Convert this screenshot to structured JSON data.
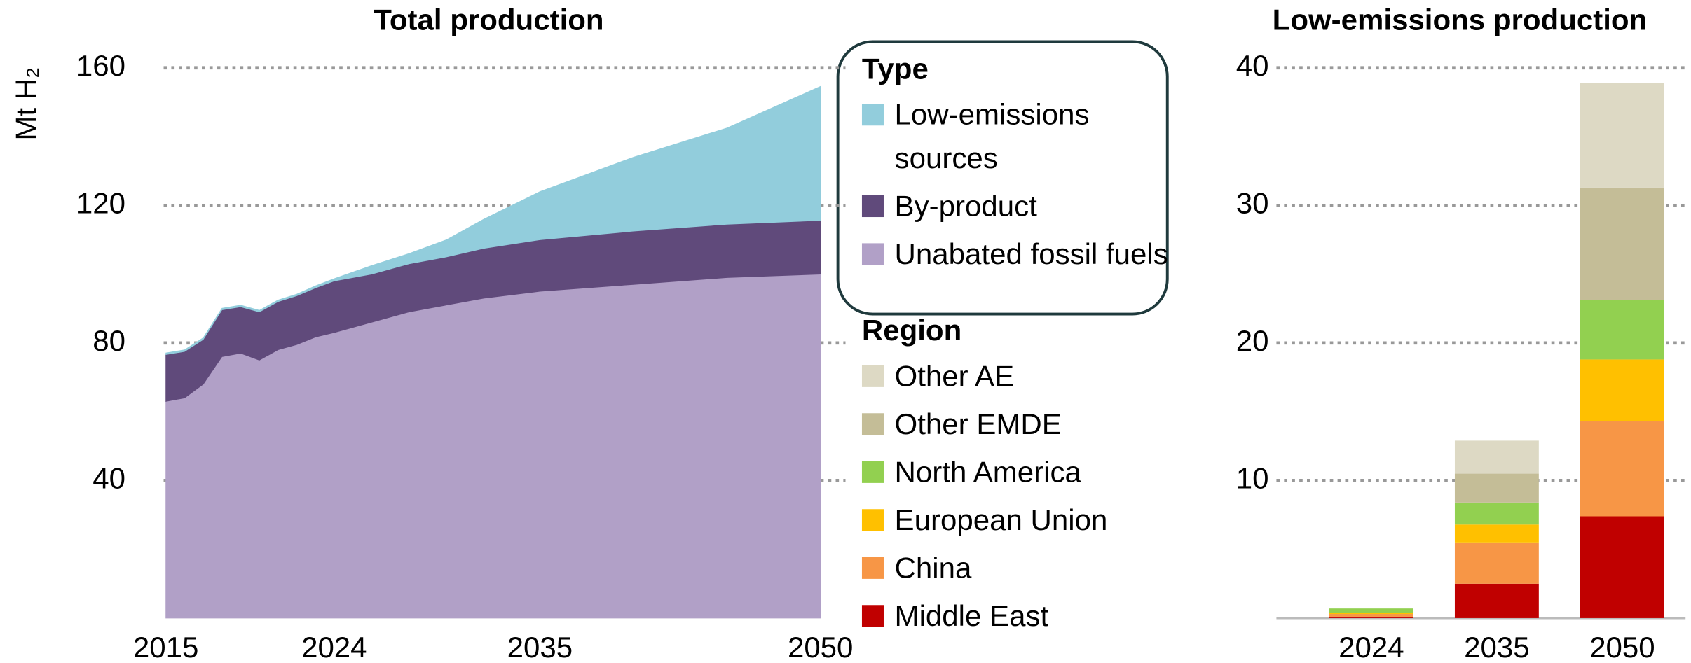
{
  "chart_data": [
    {
      "type": "area",
      "title": "Total production",
      "y_label": "Mt H₂",
      "legend_title": "Type",
      "x": [
        2015,
        2016,
        2017,
        2018,
        2019,
        2020,
        2021,
        2022,
        2023,
        2024,
        2026,
        2028,
        2030,
        2032,
        2035,
        2040,
        2045,
        2050
      ],
      "xlim": [
        2015,
        2050
      ],
      "xticks": [
        2015,
        2024,
        2035,
        2050
      ],
      "ylim": [
        0,
        160
      ],
      "yticks": [
        40,
        80,
        120,
        160
      ],
      "grid": true,
      "stacked": true,
      "series": [
        {
          "name": "Unabated fossil fuels",
          "color": "#b1a0c7",
          "values": [
            63,
            64,
            68,
            76,
            77,
            75,
            78,
            79.5,
            81.7,
            83,
            86,
            89,
            91,
            93,
            95,
            97,
            99,
            100
          ]
        },
        {
          "name": "By-product",
          "color": "#604a7b",
          "values": [
            13.6,
            13.5,
            13,
            13.6,
            13.5,
            14,
            14,
            14.2,
            14.3,
            15,
            14,
            14,
            14,
            14.5,
            15,
            15.5,
            15.5,
            15.6
          ]
        },
        {
          "name": "Low-emissions sources",
          "color": "#92cddc",
          "values": [
            0.5,
            0.5,
            0.5,
            0.5,
            0.5,
            0.5,
            0.5,
            0.5,
            0.6,
            0.7,
            2.5,
            3,
            5,
            8.5,
            14,
            21.5,
            28,
            39
          ]
        }
      ]
    },
    {
      "type": "bar",
      "title": "Low-emissions production",
      "legend_title": "Region",
      "categories": [
        "2024",
        "2035",
        "2050"
      ],
      "ylim": [
        0,
        40
      ],
      "yticks": [
        10,
        20,
        30,
        40
      ],
      "grid": true,
      "stacked": true,
      "series": [
        {
          "name": "Middle East",
          "color": "#c00000",
          "values": [
            0.1,
            2.5,
            7.4
          ]
        },
        {
          "name": "China",
          "color": "#f79646",
          "values": [
            0.2,
            3,
            6.9
          ]
        },
        {
          "name": "European Union",
          "color": "#ffc000",
          "values": [
            0.1,
            1.3,
            4.5
          ]
        },
        {
          "name": "North America",
          "color": "#92d050",
          "values": [
            0.3,
            1.6,
            4.3
          ]
        },
        {
          "name": "Other EMDE",
          "color": "#c4bd97",
          "values": [
            0,
            2.1,
            8.2
          ]
        },
        {
          "name": "Other AE",
          "color": "#ddd9c4",
          "values": [
            0,
            2.4,
            7.6
          ]
        }
      ]
    }
  ]
}
